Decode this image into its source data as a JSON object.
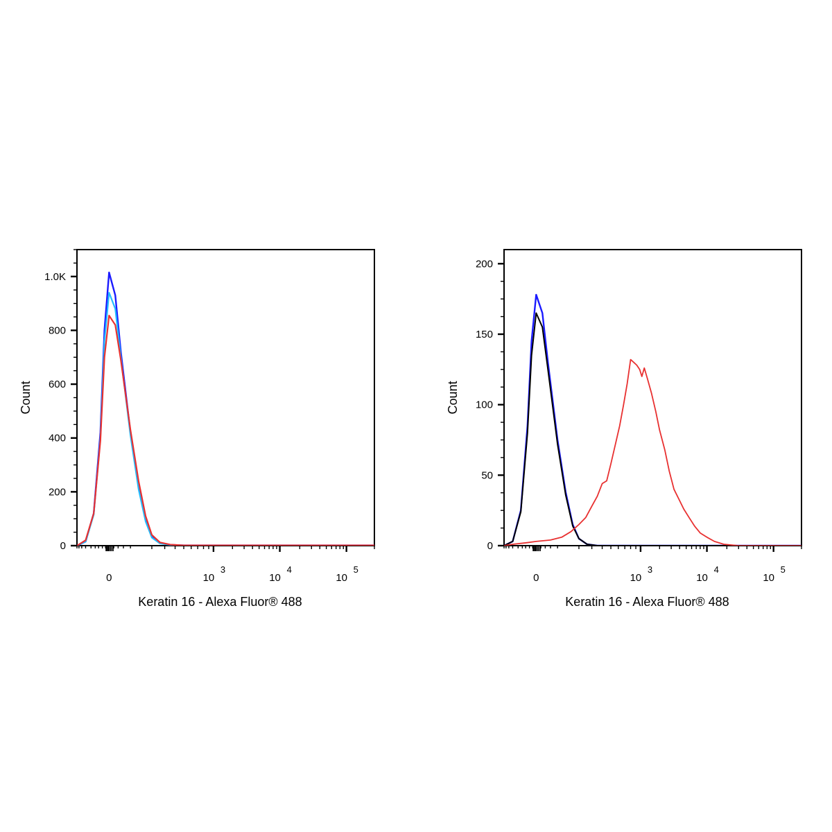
{
  "chart_data": [
    {
      "type": "line",
      "panel": "left",
      "title": "",
      "xlabel": "Keratin 16 - Alexa Fluor® 488",
      "ylabel": "Count",
      "x_scale": "biexponential",
      "x_tick_labels": [
        {
          "base": "0",
          "exp": ""
        },
        {
          "base": "10",
          "exp": "3"
        },
        {
          "base": "10",
          "exp": "4"
        },
        {
          "base": "10",
          "exp": "5"
        }
      ],
      "ylim": [
        0,
        1100
      ],
      "y_ticks": [
        {
          "value": 0,
          "label": "0"
        },
        {
          "value": 200,
          "label": "200"
        },
        {
          "value": 400,
          "label": "400"
        },
        {
          "value": 600,
          "label": "600"
        },
        {
          "value": 800,
          "label": "800"
        },
        {
          "value": 1000,
          "label": "1.0K"
        }
      ],
      "series": [
        {
          "color": "#1a1aff",
          "width": 2.4,
          "x": [
            -300,
            -150,
            -80,
            -40,
            -20,
            0,
            20,
            40,
            80,
            120,
            160,
            200,
            260,
            350,
            500,
            800,
            1500,
            5000,
            100000,
            200000
          ],
          "y": [
            0,
            15,
            120,
            420,
            800,
            1015,
            930,
            720,
            420,
            220,
            95,
            35,
            10,
            3,
            1,
            1,
            1,
            1,
            1,
            1
          ]
        },
        {
          "color": "#22bbff",
          "width": 2.2,
          "x": [
            -300,
            -150,
            -80,
            -40,
            -20,
            0,
            20,
            40,
            80,
            120,
            160,
            200,
            260,
            350,
            500,
            800,
            1500,
            5000,
            100000,
            200000
          ],
          "y": [
            0,
            15,
            115,
            400,
            760,
            940,
            880,
            700,
            410,
            210,
            90,
            30,
            8,
            3,
            1,
            1,
            1,
            1,
            1,
            1
          ]
        },
        {
          "color": "#e83030",
          "width": 2.2,
          "x": [
            -300,
            -150,
            -80,
            -40,
            -20,
            0,
            20,
            40,
            80,
            120,
            160,
            200,
            260,
            350,
            500,
            800,
            1500,
            5000,
            100000,
            200000
          ],
          "y": [
            0,
            20,
            120,
            390,
            700,
            855,
            820,
            690,
            430,
            240,
            110,
            40,
            12,
            4,
            1,
            1,
            1,
            1,
            1,
            1
          ]
        }
      ]
    },
    {
      "type": "line",
      "panel": "right",
      "title": "",
      "xlabel": "Keratin 16 - Alexa Fluor® 488",
      "ylabel": "Count",
      "x_scale": "biexponential",
      "x_tick_labels": [
        {
          "base": "0",
          "exp": ""
        },
        {
          "base": "10",
          "exp": "3"
        },
        {
          "base": "10",
          "exp": "4"
        },
        {
          "base": "10",
          "exp": "5"
        }
      ],
      "ylim": [
        0,
        210
      ],
      "y_ticks": [
        {
          "value": 0,
          "label": "0"
        },
        {
          "value": 50,
          "label": "50"
        },
        {
          "value": 100,
          "label": "100"
        },
        {
          "value": 150,
          "label": "150"
        },
        {
          "value": 200,
          "label": "200"
        }
      ],
      "series": [
        {
          "color": "#1a1aff",
          "width": 2.4,
          "x": [
            -300,
            -150,
            -80,
            -40,
            -20,
            0,
            20,
            40,
            80,
            120,
            160,
            200,
            260,
            350,
            500,
            1000,
            5000,
            200000
          ],
          "y": [
            0,
            3,
            25,
            85,
            145,
            178,
            165,
            130,
            75,
            38,
            15,
            5,
            1,
            0,
            0,
            0,
            0,
            0
          ]
        },
        {
          "color": "#000000",
          "width": 2.0,
          "x": [
            -300,
            -150,
            -80,
            -40,
            -20,
            0,
            20,
            40,
            80,
            120,
            160,
            200,
            260,
            350,
            500,
            1000,
            5000,
            200000
          ],
          "y": [
            0,
            3,
            24,
            80,
            135,
            165,
            155,
            125,
            72,
            36,
            14,
            5,
            1,
            0,
            0,
            0,
            0,
            0
          ]
        },
        {
          "color": "#e83030",
          "width": 1.8,
          "x": [
            -300,
            -150,
            -50,
            0,
            50,
            100,
            150,
            200,
            250,
            300,
            350,
            400,
            450,
            500,
            560,
            620,
            680,
            740,
            800,
            860,
            920,
            980,
            1050,
            1150,
            1300,
            1500,
            1750,
            2000,
            2400,
            2800,
            3300,
            3900,
            4600,
            5500,
            6600,
            8000,
            10000,
            13000,
            18000,
            30000,
            200000
          ],
          "y": [
            0,
            1,
            2,
            3,
            4,
            6,
            10,
            15,
            20,
            28,
            35,
            44,
            46,
            58,
            72,
            85,
            100,
            115,
            132,
            130,
            128,
            125,
            120,
            126,
            118,
            108,
            95,
            82,
            68,
            53,
            40,
            33,
            26,
            20,
            14,
            9,
            6,
            3,
            1,
            0,
            0
          ]
        }
      ]
    }
  ]
}
